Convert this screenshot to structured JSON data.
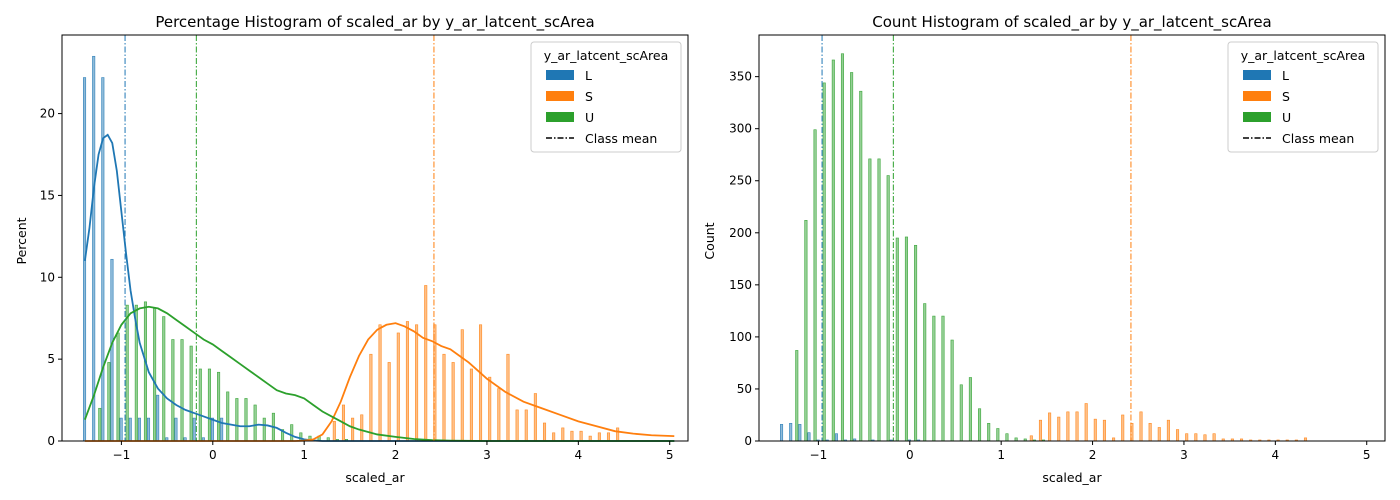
{
  "colors": {
    "L": "#1f77b4",
    "S": "#ff7f0e",
    "U": "#2ca02c"
  },
  "chart_data": [
    {
      "type": "bar",
      "title": "Percentage Histogram of scaled_ar by y_ar_latcent_scArea",
      "xlabel": "scaled_ar",
      "ylabel": "Percent",
      "xlim": [
        -1.65,
        5.2
      ],
      "ylim": [
        0,
        24.8
      ],
      "xticks": [
        -1,
        0,
        1,
        2,
        3,
        4,
        5
      ],
      "yticks": [
        0,
        5,
        10,
        15,
        20
      ],
      "legend": {
        "title": "y_ar_latcent_scArea",
        "placement": "top-right",
        "mean_label": "Class mean",
        "entries": [
          {
            "label": "L",
            "color": "#1f77b4"
          },
          {
            "label": "S",
            "color": "#ff7f0e"
          },
          {
            "label": "U",
            "color": "#2ca02c"
          }
        ]
      },
      "bin_start": -1.42,
      "bin_width": 0.1,
      "series": [
        {
          "name": "L",
          "color": "#1f77b4",
          "mean": -0.96,
          "values": [
            22.2,
            23.5,
            22.2,
            11.1,
            1.4,
            1.4,
            1.4,
            1.4,
            2.8,
            0.2,
            1.4,
            0.2,
            1.4,
            0.2,
            1.4,
            1.4
          ]
        },
        {
          "name": "S",
          "color": "#ff7f0e",
          "mean": 2.42,
          "values": [
            0,
            0,
            0,
            0,
            0,
            0,
            0,
            0,
            0,
            0,
            0,
            0,
            0,
            0,
            0,
            0,
            0,
            0,
            0,
            0,
            0,
            0,
            0,
            0,
            0,
            0,
            0,
            1.2,
            2.2,
            1.4,
            1.6,
            5.3,
            7.1,
            4.8,
            6.6,
            7.3,
            7.1,
            9.5,
            7.1,
            5.3,
            4.8,
            6.8,
            4.4,
            7.1,
            3.9,
            3.2,
            5.3,
            1.9,
            1.9,
            2.9,
            1.1,
            0.5,
            0.8,
            0.6,
            0.6,
            0.3,
            0.5,
            0.5,
            0.8
          ]
        },
        {
          "name": "U",
          "color": "#2ca02c",
          "mean": -0.18,
          "values": [
            0,
            2.0,
            4.8,
            6.6,
            8.3,
            8.3,
            8.5,
            8.1,
            7.6,
            6.2,
            6.2,
            5.8,
            4.4,
            4.4,
            4.2,
            3.0,
            2.6,
            2.6,
            2.2,
            1.4,
            1.7,
            0.7,
            1.0,
            0.5,
            0.3,
            0.3,
            0.2,
            0.1,
            0.1
          ]
        }
      ],
      "kde": [
        {
          "name": "L",
          "points": [
            [
              -1.4,
              11.0
            ],
            [
              -1.35,
              13.0
            ],
            [
              -1.3,
              15.5
            ],
            [
              -1.25,
              17.5
            ],
            [
              -1.2,
              18.5
            ],
            [
              -1.15,
              18.7
            ],
            [
              -1.1,
              18.2
            ],
            [
              -1.05,
              16.5
            ],
            [
              -1.0,
              14.0
            ],
            [
              -0.95,
              11.5
            ],
            [
              -0.9,
              9.2
            ],
            [
              -0.85,
              7.5
            ],
            [
              -0.8,
              6.0
            ],
            [
              -0.7,
              4.2
            ],
            [
              -0.6,
              3.2
            ],
            [
              -0.5,
              2.6
            ],
            [
              -0.4,
              2.2
            ],
            [
              -0.3,
              1.9
            ],
            [
              -0.2,
              1.7
            ],
            [
              -0.1,
              1.5
            ],
            [
              0,
              1.3
            ],
            [
              0.1,
              1.1
            ],
            [
              0.2,
              1.0
            ],
            [
              0.3,
              0.9
            ],
            [
              0.4,
              0.9
            ],
            [
              0.5,
              1.0
            ],
            [
              0.6,
              0.95
            ],
            [
              0.7,
              0.8
            ],
            [
              0.8,
              0.5
            ],
            [
              0.9,
              0.25
            ],
            [
              1.0,
              0.1
            ],
            [
              1.1,
              0.03
            ],
            [
              1.2,
              0
            ],
            [
              5.05,
              0
            ]
          ]
        },
        {
          "name": "S",
          "points": [
            [
              -1.4,
              0
            ],
            [
              0.9,
              0
            ],
            [
              1.0,
              0.02
            ],
            [
              1.1,
              0.1
            ],
            [
              1.2,
              0.4
            ],
            [
              1.3,
              1.2
            ],
            [
              1.4,
              2.4
            ],
            [
              1.5,
              3.9
            ],
            [
              1.6,
              5.2
            ],
            [
              1.7,
              6.2
            ],
            [
              1.8,
              6.8
            ],
            [
              1.9,
              7.1
            ],
            [
              2.0,
              7.2
            ],
            [
              2.1,
              7.0
            ],
            [
              2.2,
              6.7
            ],
            [
              2.3,
              6.3
            ],
            [
              2.4,
              6.1
            ],
            [
              2.5,
              5.8
            ],
            [
              2.6,
              5.6
            ],
            [
              2.7,
              5.2
            ],
            [
              2.8,
              4.8
            ],
            [
              2.9,
              4.3
            ],
            [
              3.0,
              3.8
            ],
            [
              3.2,
              3.0
            ],
            [
              3.4,
              2.4
            ],
            [
              3.6,
              2.0
            ],
            [
              3.8,
              1.6
            ],
            [
              4.0,
              1.2
            ],
            [
              4.2,
              0.9
            ],
            [
              4.4,
              0.6
            ],
            [
              4.6,
              0.45
            ],
            [
              4.8,
              0.35
            ],
            [
              5.05,
              0.3
            ]
          ]
        },
        {
          "name": "U",
          "points": [
            [
              -1.4,
              1.3
            ],
            [
              -1.3,
              2.8
            ],
            [
              -1.2,
              4.5
            ],
            [
              -1.1,
              6.0
            ],
            [
              -1.0,
              7.1
            ],
            [
              -0.9,
              7.8
            ],
            [
              -0.8,
              8.1
            ],
            [
              -0.7,
              8.2
            ],
            [
              -0.6,
              8.1
            ],
            [
              -0.5,
              7.8
            ],
            [
              -0.4,
              7.4
            ],
            [
              -0.3,
              7.0
            ],
            [
              -0.2,
              6.6
            ],
            [
              -0.1,
              6.2
            ],
            [
              0,
              5.9
            ],
            [
              0.1,
              5.5
            ],
            [
              0.2,
              5.1
            ],
            [
              0.3,
              4.7
            ],
            [
              0.4,
              4.3
            ],
            [
              0.5,
              3.9
            ],
            [
              0.6,
              3.5
            ],
            [
              0.7,
              3.1
            ],
            [
              0.8,
              2.9
            ],
            [
              0.9,
              2.8
            ],
            [
              1.0,
              2.6
            ],
            [
              1.1,
              2.2
            ],
            [
              1.2,
              1.8
            ],
            [
              1.3,
              1.5
            ],
            [
              1.4,
              1.2
            ],
            [
              1.5,
              0.9
            ],
            [
              1.6,
              0.7
            ],
            [
              1.8,
              0.4
            ],
            [
              2.0,
              0.25
            ],
            [
              2.2,
              0.12
            ],
            [
              2.4,
              0.05
            ],
            [
              2.6,
              0.02
            ],
            [
              3.0,
              0
            ],
            [
              5.05,
              0
            ]
          ]
        }
      ]
    },
    {
      "type": "bar",
      "title": "Count Histogram of scaled_ar by y_ar_latcent_scArea",
      "xlabel": "scaled_ar",
      "ylabel": "Count",
      "xlim": [
        -1.65,
        5.2
      ],
      "ylim": [
        0,
        390
      ],
      "xticks": [
        -1,
        0,
        1,
        2,
        3,
        4,
        5
      ],
      "yticks": [
        0,
        50,
        100,
        150,
        200,
        250,
        300,
        350
      ],
      "legend": {
        "title": "y_ar_latcent_scArea",
        "placement": "top-right",
        "mean_label": "Class mean",
        "entries": [
          {
            "label": "L",
            "color": "#1f77b4"
          },
          {
            "label": "S",
            "color": "#ff7f0e"
          },
          {
            "label": "U",
            "color": "#2ca02c"
          }
        ]
      },
      "bin_start": -1.42,
      "bin_width": 0.1,
      "series": [
        {
          "name": "L",
          "color": "#1f77b4",
          "mean": -0.96,
          "values": [
            16,
            17,
            16,
            8,
            1,
            1,
            7,
            1,
            2,
            0,
            1,
            0,
            1,
            0,
            1,
            1
          ]
        },
        {
          "name": "S",
          "color": "#ff7f0e",
          "mean": 2.42,
          "values": [
            0,
            0,
            0,
            0,
            0,
            0,
            0,
            0,
            0,
            0,
            0,
            0,
            0,
            0,
            0,
            0,
            0,
            0,
            0,
            0,
            0,
            0,
            0,
            0,
            0,
            0,
            0,
            5,
            20,
            27,
            23,
            28,
            28,
            36,
            21,
            20,
            3,
            25,
            17,
            28,
            17,
            13,
            20,
            11,
            7,
            7,
            6,
            7,
            2,
            2,
            2,
            1,
            1,
            1,
            1,
            1,
            1,
            3
          ]
        },
        {
          "name": "U",
          "color": "#2ca02c",
          "mean": -0.18,
          "values": [
            0,
            87,
            212,
            299,
            344,
            366,
            372,
            354,
            336,
            271,
            271,
            255,
            195,
            196,
            188,
            132,
            120,
            120,
            97,
            54,
            61,
            31,
            17,
            12,
            7,
            3,
            2,
            1,
            1
          ]
        }
      ]
    }
  ]
}
